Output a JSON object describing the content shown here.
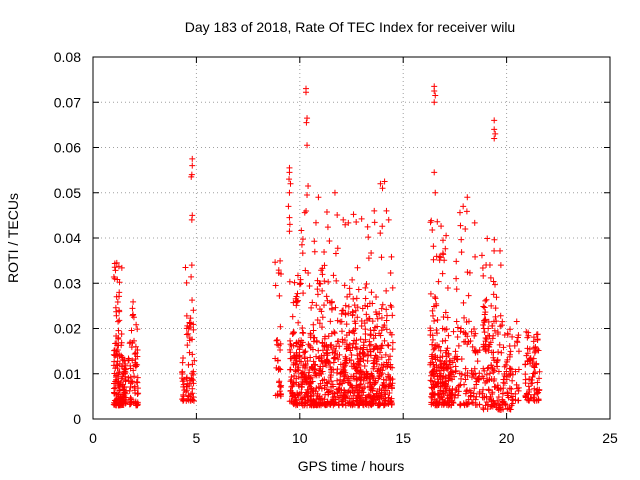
{
  "chart_data": {
    "type": "scatter",
    "title": "Day 183 of 2018, Rate Of TEC Index for receiver wilu",
    "xlabel": "GPS time / hours",
    "ylabel": "ROTI / TECUs",
    "xlim": [
      0,
      25
    ],
    "ylim": [
      0,
      0.08
    ],
    "xticks": [
      0,
      5,
      10,
      15,
      20,
      25
    ],
    "xtick_labels": [
      "0",
      "5",
      "10",
      "15",
      "20",
      "25"
    ],
    "yticks": [
      0,
      0.01,
      0.02,
      0.03,
      0.04,
      0.05,
      0.06,
      0.07,
      0.08
    ],
    "ytick_labels": [
      "0",
      "0.01",
      "0.02",
      "0.03",
      "0.04",
      "0.05",
      "0.06",
      "0.07",
      "0.08"
    ],
    "grid": true,
    "marker": "+",
    "marker_color": "#ff0000",
    "series": [
      {
        "name": "ROTI",
        "clusters": [
          {
            "x": [
              1.0,
              1.6
            ],
            "y": [
              0.003,
              0.014
            ],
            "n": 120
          },
          {
            "x": [
              1.0,
              1.4
            ],
            "y": [
              0.014,
              0.035
            ],
            "n": 40
          },
          {
            "x": [
              1.7,
              2.2
            ],
            "y": [
              0.003,
              0.02
            ],
            "n": 60
          },
          {
            "x": [
              1.9,
              2.1
            ],
            "y": [
              0.02,
              0.03
            ],
            "n": 6
          },
          {
            "x": [
              4.3,
              4.9
            ],
            "y": [
              0.004,
              0.02
            ],
            "n": 60
          },
          {
            "x": [
              4.4,
              4.9
            ],
            "y": [
              0.02,
              0.034
            ],
            "n": 14
          },
          {
            "x": [
              8.8,
              9.1
            ],
            "y": [
              0.005,
              0.017
            ],
            "n": 25
          },
          {
            "x": [
              8.8,
              9.1
            ],
            "y": [
              0.017,
              0.037
            ],
            "n": 10
          },
          {
            "x": [
              9.5,
              14.5
            ],
            "y": [
              0.003,
              0.016
            ],
            "n": 700
          },
          {
            "x": [
              9.5,
              14.5
            ],
            "y": [
              0.016,
              0.03
            ],
            "n": 200
          },
          {
            "x": [
              9.5,
              14.5
            ],
            "y": [
              0.03,
              0.046
            ],
            "n": 50
          },
          {
            "x": [
              16.3,
              17.4
            ],
            "y": [
              0.003,
              0.016
            ],
            "n": 180
          },
          {
            "x": [
              16.3,
              17.2
            ],
            "y": [
              0.016,
              0.045
            ],
            "n": 50
          },
          {
            "x": [
              17.3,
              18.7
            ],
            "y": [
              0.003,
              0.02
            ],
            "n": 110
          },
          {
            "x": [
              17.5,
              18.6
            ],
            "y": [
              0.02,
              0.046
            ],
            "n": 20
          },
          {
            "x": [
              18.8,
              20.3
            ],
            "y": [
              0.002,
              0.02
            ],
            "n": 160
          },
          {
            "x": [
              18.8,
              19.8
            ],
            "y": [
              0.02,
              0.04
            ],
            "n": 40
          },
          {
            "x": [
              20.3,
              20.6
            ],
            "y": [
              0.004,
              0.023
            ],
            "n": 20
          },
          {
            "x": [
              20.9,
              21.6
            ],
            "y": [
              0.004,
              0.02
            ],
            "n": 80
          }
        ],
        "points": [
          [
            1.15,
            0.0345
          ],
          [
            1.05,
            0.031
          ],
          [
            4.8,
            0.0575
          ],
          [
            4.8,
            0.056
          ],
          [
            4.78,
            0.054
          ],
          [
            4.75,
            0.0535
          ],
          [
            4.8,
            0.045
          ],
          [
            4.78,
            0.044
          ],
          [
            4.78,
            0.034
          ],
          [
            9.5,
            0.0555
          ],
          [
            9.5,
            0.0545
          ],
          [
            9.48,
            0.053
          ],
          [
            9.55,
            0.052
          ],
          [
            9.5,
            0.05
          ],
          [
            9.45,
            0.047
          ],
          [
            9.5,
            0.0445
          ],
          [
            9.52,
            0.043
          ],
          [
            9.5,
            0.0415
          ],
          [
            10.3,
            0.073
          ],
          [
            10.3,
            0.0722
          ],
          [
            10.35,
            0.0665
          ],
          [
            10.32,
            0.0655
          ],
          [
            10.35,
            0.0605
          ],
          [
            10.4,
            0.0515
          ],
          [
            10.35,
            0.0495
          ],
          [
            11.7,
            0.05
          ],
          [
            12.1,
            0.044
          ],
          [
            10.9,
            0.049
          ],
          [
            13.9,
            0.052
          ],
          [
            14.1,
            0.0525
          ],
          [
            14.0,
            0.051
          ],
          [
            13.6,
            0.046
          ],
          [
            14.3,
            0.044
          ],
          [
            16.5,
            0.0735
          ],
          [
            16.5,
            0.0725
          ],
          [
            16.55,
            0.0715
          ],
          [
            16.5,
            0.07
          ],
          [
            16.5,
            0.0545
          ],
          [
            16.55,
            0.05
          ],
          [
            18.1,
            0.049
          ],
          [
            17.9,
            0.047
          ],
          [
            18.0,
            0.042
          ],
          [
            19.4,
            0.066
          ],
          [
            19.4,
            0.064
          ],
          [
            19.45,
            0.063
          ],
          [
            19.4,
            0.062
          ]
        ]
      }
    ]
  }
}
